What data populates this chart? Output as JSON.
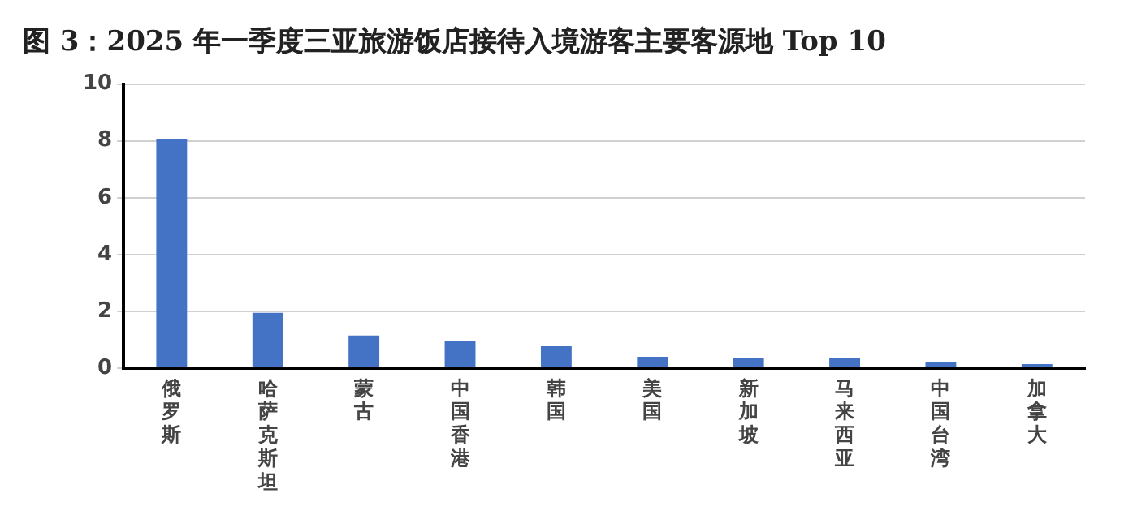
{
  "chart_data": {
    "type": "bar",
    "title": "图 3：2025 年一季度三亚旅游饭店接待入境游客主要客源地 Top 10",
    "categories": [
      "俄罗斯",
      "哈萨克斯坦",
      "蒙古",
      "中国香港",
      "韩国",
      "美国",
      "新加坡",
      "马来西亚",
      "中国台湾",
      "加拿大"
    ],
    "values": [
      8.07,
      1.95,
      1.15,
      0.94,
      0.77,
      0.4,
      0.34,
      0.34,
      0.23,
      0.14
    ],
    "color": "#4472c4",
    "ylim": [
      0,
      10
    ],
    "yticks": [
      0,
      2,
      4,
      6,
      8,
      10
    ],
    "grid": "y",
    "legend": false
  }
}
